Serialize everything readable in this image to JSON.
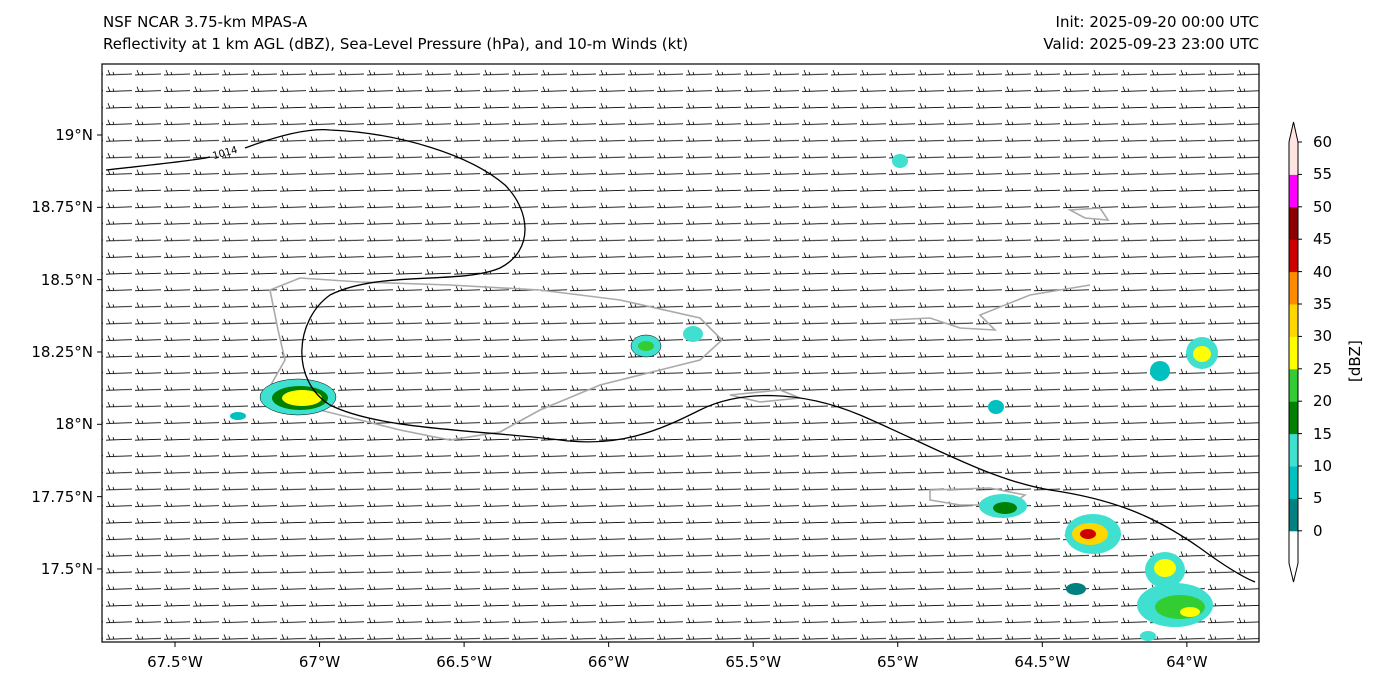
{
  "header": {
    "title_line1": "NSF NCAR 3.75-km MPAS-A",
    "title_line2": "Reflectivity at 1 km AGL (dBZ), Sea-Level Pressure (hPa), and 10-m Winds (kt)",
    "init": "Init: 2025-09-20 00:00 UTC",
    "valid": "Valid: 2025-09-23 23:00 UTC"
  },
  "map": {
    "extent": {
      "lon": [
        -67.75,
        -63.75
      ],
      "lat": [
        17.25,
        19.245
      ]
    },
    "x_ticks": [
      {
        "v": -67.5,
        "label": "67.5°W"
      },
      {
        "v": -67,
        "label": "67°W"
      },
      {
        "v": -66.5,
        "label": "66.5°W"
      },
      {
        "v": -66,
        "label": "66°W"
      },
      {
        "v": -65.5,
        "label": "65.5°W"
      },
      {
        "v": -65,
        "label": "65°W"
      },
      {
        "v": -64.5,
        "label": "64.5°W"
      },
      {
        "v": -64,
        "label": "64°W"
      }
    ],
    "y_ticks": [
      {
        "v": 19,
        "label": "19°N"
      },
      {
        "v": 18.75,
        "label": "18.75°N"
      },
      {
        "v": 18.5,
        "label": "18.5°N"
      },
      {
        "v": 18.25,
        "label": "18.25°N"
      },
      {
        "v": 18,
        "label": "18°N"
      },
      {
        "v": 17.75,
        "label": "17.75°N"
      },
      {
        "v": 17.5,
        "label": "17.5°N"
      }
    ],
    "contour_label": "1014"
  },
  "colorbar": {
    "label": "[dBZ]",
    "levels": [
      "0",
      "5",
      "10",
      "15",
      "20",
      "25",
      "30",
      "35",
      "40",
      "45",
      "50",
      "55",
      "60"
    ],
    "colors": [
      "#008080",
      "#00c0c0",
      "#40e0d0",
      "#008000",
      "#32cd32",
      "#ffff00",
      "#ffd700",
      "#ff8c00",
      "#cc0000",
      "#8b0000",
      "#ff00ff",
      "#ffe4e1"
    ]
  }
}
